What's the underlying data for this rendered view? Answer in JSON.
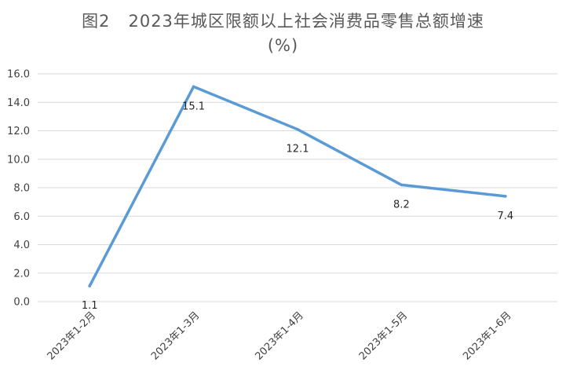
{
  "chart_data": {
    "type": "line",
    "title_prefix": "图2",
    "title": "2023年城区限额以上社会消费品零售总额增速",
    "subtitle": "(%)",
    "categories": [
      "2023年1-2月",
      "2023年1-3月",
      "2023年1-4月",
      "2023年1-5月",
      "2023年1-6月"
    ],
    "series": [
      {
        "values": [
          1.1,
          15.1,
          12.1,
          8.2,
          7.4
        ],
        "color": "#5b9bd5"
      }
    ],
    "data_labels": [
      "1.1",
      "15.1",
      "12.1",
      "8.2",
      "7.4"
    ],
    "y_ticks": [
      "0.0",
      "2.0",
      "4.0",
      "6.0",
      "8.0",
      "10.0",
      "12.0",
      "14.0",
      "16.0"
    ],
    "ylim": [
      0,
      16
    ],
    "grid": true,
    "legend": "none"
  }
}
